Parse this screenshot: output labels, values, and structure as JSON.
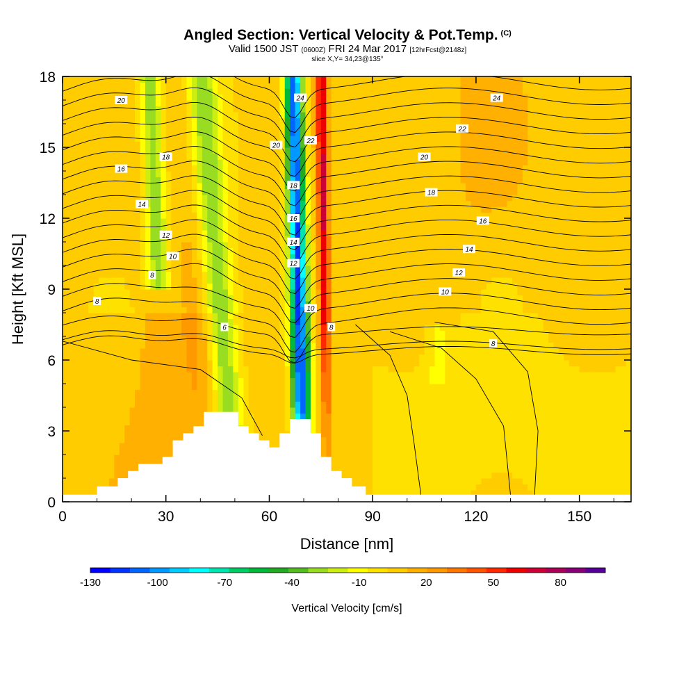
{
  "header": {
    "title": "Angled Section: Vertical Velocity & Pot.Temp.",
    "title_mark": "(C)",
    "valid_a": "Valid 1500 JST",
    "valid_small1": "(0600Z)",
    "valid_b": "FRI 24 Mar 2017",
    "valid_small2": "[12hrFcst@2148z]",
    "slice": "slice X,Y= 34,23@135°"
  },
  "chart_data": {
    "type": "heatmap",
    "xlabel": "Distance [nm]",
    "ylabel": "Height [Kft MSL]",
    "xlim": [
      0,
      165
    ],
    "ylim": [
      0,
      18
    ],
    "x_ticks": [
      0,
      30,
      60,
      90,
      120,
      150
    ],
    "y_ticks": [
      0,
      3,
      6,
      9,
      12,
      15,
      18
    ],
    "colorbar": {
      "title": "Vertical Velocity [cm/s]",
      "range": [
        -130,
        100
      ],
      "tick_values": [
        -130,
        -100,
        -70,
        -40,
        -10,
        20,
        50,
        80
      ],
      "colors": [
        "#0000ff",
        "#0033ff",
        "#0066ff",
        "#0099ff",
        "#00ccff",
        "#00ffff",
        "#00e5b0",
        "#00cc66",
        "#00b83a",
        "#22aa22",
        "#55bb22",
        "#99dd22",
        "#ccee11",
        "#ffff00",
        "#ffe100",
        "#ffcc00",
        "#ffb000",
        "#ff9900",
        "#ff7700",
        "#ff5500",
        "#ff2a00",
        "#ee0000",
        "#cc0033",
        "#aa0055",
        "#880077",
        "#550099"
      ]
    },
    "velocity_features": [
      {
        "kind": "downdraft-strong",
        "x_bottom": 70,
        "x_top": 67,
        "value": -120
      },
      {
        "kind": "updraft-strong",
        "x_bottom": 77,
        "x_top": 75,
        "value": 60
      },
      {
        "kind": "downdraft-moderate",
        "x_bottom": 50,
        "x_top": 40,
        "value": -45
      },
      {
        "kind": "updraft-weak",
        "x_bottom": 45,
        "x_top": 35,
        "value": 10
      }
    ],
    "contour_labels": [
      {
        "text": "20",
        "x": 17,
        "y": 17.0
      },
      {
        "text": "18",
        "x": 30,
        "y": 14.6
      },
      {
        "text": "16",
        "x": 17,
        "y": 14.1
      },
      {
        "text": "14",
        "x": 23,
        "y": 12.6
      },
      {
        "text": "12",
        "x": 30,
        "y": 11.3
      },
      {
        "text": "10",
        "x": 32,
        "y": 10.4
      },
      {
        "text": "8",
        "x": 26,
        "y": 9.6
      },
      {
        "text": "8",
        "x": 10,
        "y": 8.5
      },
      {
        "text": "6",
        "x": 47,
        "y": 7.4
      },
      {
        "text": "24",
        "x": 69,
        "y": 17.1
      },
      {
        "text": "22",
        "x": 72,
        "y": 15.3
      },
      {
        "text": "20",
        "x": 62,
        "y": 15.1
      },
      {
        "text": "18",
        "x": 67,
        "y": 13.4
      },
      {
        "text": "16",
        "x": 67,
        "y": 12.0
      },
      {
        "text": "14",
        "x": 67,
        "y": 11.0
      },
      {
        "text": "12",
        "x": 67,
        "y": 10.1
      },
      {
        "text": "10",
        "x": 72,
        "y": 8.2
      },
      {
        "text": "8",
        "x": 78,
        "y": 7.4
      },
      {
        "text": "24",
        "x": 126,
        "y": 17.1
      },
      {
        "text": "22",
        "x": 116,
        "y": 15.8
      },
      {
        "text": "20",
        "x": 105,
        "y": 14.6
      },
      {
        "text": "18",
        "x": 107,
        "y": 13.1
      },
      {
        "text": "16",
        "x": 122,
        "y": 11.9
      },
      {
        "text": "14",
        "x": 118,
        "y": 10.7
      },
      {
        "text": "12",
        "x": 115,
        "y": 9.7
      },
      {
        "text": "10",
        "x": 111,
        "y": 8.9
      },
      {
        "text": "8",
        "x": 125,
        "y": 6.7
      }
    ],
    "terrain": [
      [
        0,
        0.3
      ],
      [
        10,
        0.3
      ],
      [
        10,
        0.65
      ],
      [
        16,
        0.65
      ],
      [
        16,
        1.0
      ],
      [
        19,
        1.0
      ],
      [
        19,
        1.3
      ],
      [
        22,
        1.3
      ],
      [
        22,
        1.6
      ],
      [
        29,
        1.6
      ],
      [
        29,
        1.9
      ],
      [
        32,
        1.9
      ],
      [
        32,
        2.6
      ],
      [
        35,
        2.6
      ],
      [
        35,
        2.9
      ],
      [
        38,
        2.9
      ],
      [
        38,
        3.2
      ],
      [
        41,
        3.2
      ],
      [
        41,
        3.8
      ],
      [
        51,
        3.8
      ],
      [
        51,
        3.2
      ],
      [
        54,
        3.2
      ],
      [
        54,
        2.9
      ],
      [
        57,
        2.9
      ],
      [
        57,
        2.6
      ],
      [
        60,
        2.6
      ],
      [
        60,
        2.3
      ],
      [
        63,
        2.3
      ],
      [
        63,
        2.9
      ],
      [
        66,
        2.9
      ],
      [
        66,
        3.5
      ],
      [
        72,
        3.5
      ],
      [
        72,
        2.9
      ],
      [
        75,
        2.9
      ],
      [
        75,
        1.9
      ],
      [
        78,
        1.9
      ],
      [
        78,
        1.3
      ],
      [
        81,
        1.3
      ],
      [
        81,
        1.0
      ],
      [
        84,
        1.0
      ],
      [
        84,
        0.65
      ],
      [
        88,
        0.65
      ],
      [
        88,
        0.3
      ],
      [
        165,
        0.3
      ],
      [
        165,
        0
      ]
    ]
  },
  "colors": {
    "background": "#ffffff",
    "axis": "#000000",
    "contour": "#000000",
    "terrain": "#ffffff"
  }
}
